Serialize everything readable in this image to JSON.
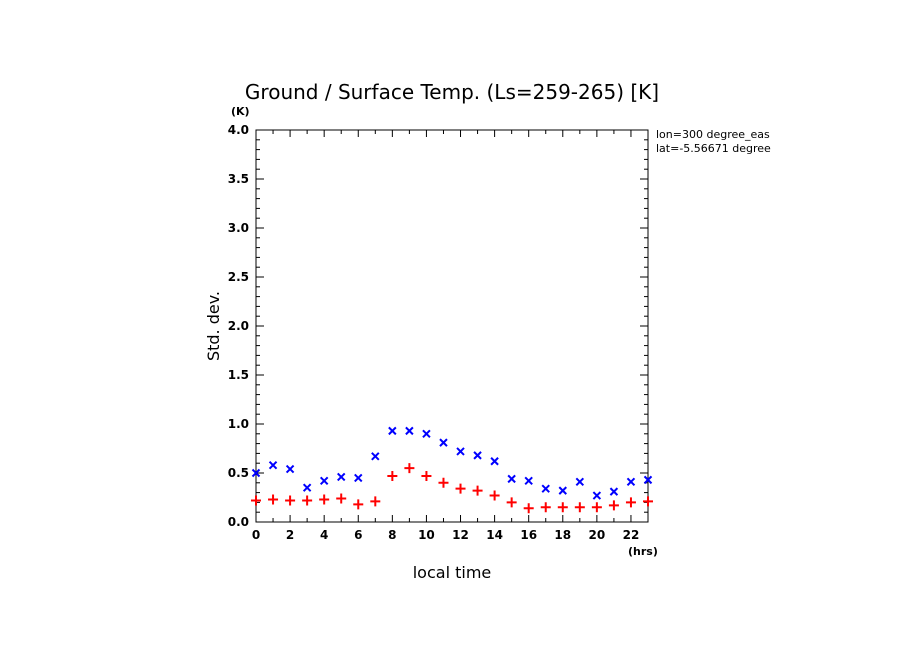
{
  "chart_data": {
    "type": "scatter",
    "title": "Ground / Surface Temp. (Ls=259-265) [K]",
    "xlabel": "local time",
    "ylabel": "Std. dev.",
    "x_unit": "(hrs)",
    "y_unit": "(K)",
    "xlim": [
      0,
      23
    ],
    "ylim": [
      0,
      4.0
    ],
    "x_ticks": [
      "0",
      "2",
      "4",
      "6",
      "8",
      "10",
      "12",
      "14",
      "16",
      "18",
      "20",
      "22"
    ],
    "y_ticks": [
      "0.0",
      "0.5",
      "1.0",
      "1.5",
      "2.0",
      "2.5",
      "3.0",
      "3.5",
      "4.0"
    ],
    "grid": false,
    "annotations": [
      "lon=300 degree_eas",
      "lat=-5.56671 degree"
    ],
    "x": [
      0,
      1,
      2,
      3,
      4,
      5,
      6,
      7,
      8,
      9,
      10,
      11,
      12,
      13,
      14,
      15,
      16,
      17,
      18,
      19,
      20,
      21,
      22,
      23
    ],
    "series": [
      {
        "marker": "x",
        "color": "#0000ff",
        "values": [
          0.5,
          0.58,
          0.54,
          0.35,
          0.42,
          0.46,
          0.45,
          0.67,
          0.93,
          0.93,
          0.9,
          0.81,
          0.72,
          0.68,
          0.62,
          0.44,
          0.42,
          0.34,
          0.32,
          0.41,
          0.27,
          0.31,
          0.41,
          0.43
        ]
      },
      {
        "marker": "+",
        "color": "#ff0000",
        "values": [
          0.22,
          0.23,
          0.22,
          0.22,
          0.23,
          0.24,
          0.18,
          0.21,
          0.47,
          0.55,
          0.47,
          0.4,
          0.34,
          0.32,
          0.27,
          0.2,
          0.14,
          0.15,
          0.15,
          0.15,
          0.15,
          0.17,
          0.2,
          0.21
        ]
      }
    ]
  }
}
